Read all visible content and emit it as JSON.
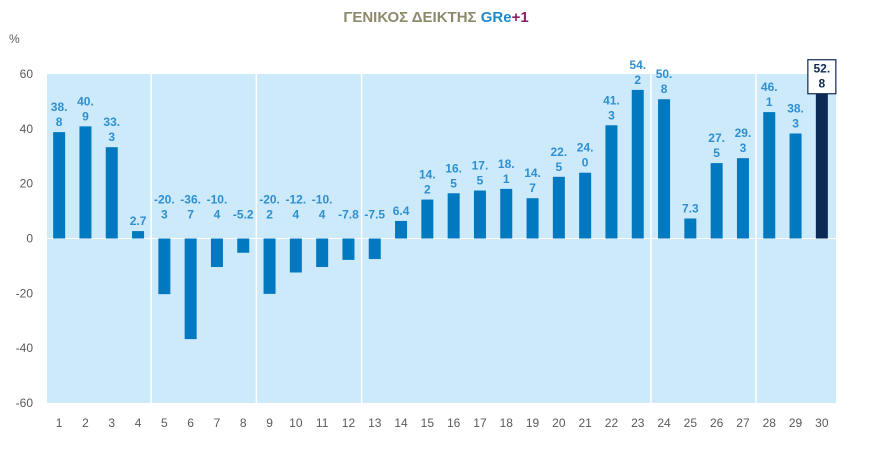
{
  "chart_data": {
    "type": "bar",
    "title_parts": [
      {
        "text": "ΓΕΝΙΚΟΣ ΔΕΙΚΤΗΣ ",
        "color": "#8c8a6a"
      },
      {
        "text": "GR",
        "color": "#1f8bc9"
      },
      {
        "text": "e",
        "color": "#1f8bc9"
      },
      {
        "text": "+1",
        "color": "#8a1f6b"
      }
    ],
    "ylabel": "%",
    "ylim": [
      -60,
      60
    ],
    "yticks": [
      60,
      40,
      20,
      0,
      -20,
      -40,
      -60
    ],
    "categories": [
      "1",
      "2",
      "3",
      "4",
      "5",
      "6",
      "7",
      "8",
      "9",
      "10",
      "11",
      "12",
      "13",
      "14",
      "15",
      "16",
      "17",
      "18",
      "19",
      "20",
      "21",
      "22",
      "23",
      "24",
      "25",
      "26",
      "27",
      "28",
      "29",
      "30"
    ],
    "values": [
      38.8,
      40.9,
      33.3,
      2.7,
      -20.3,
      -36.7,
      -10.4,
      -5.2,
      -20.2,
      -12.4,
      -10.4,
      -7.8,
      -7.5,
      6.4,
      14.2,
      16.5,
      17.5,
      18.1,
      14.7,
      22.5,
      24.0,
      41.3,
      54.2,
      50.8,
      7.3,
      27.5,
      29.3,
      46.1,
      38.3,
      52.8
    ],
    "data_labels": [
      [
        "38.",
        "8"
      ],
      [
        "40.",
        "9"
      ],
      [
        "33.",
        "3"
      ],
      [
        "2.7"
      ],
      [
        "-20.",
        "3"
      ],
      [
        "-36.",
        "7"
      ],
      [
        "-10.",
        "4"
      ],
      [
        "-5.2"
      ],
      [
        "-20.",
        "2"
      ],
      [
        "-12.",
        "4"
      ],
      [
        "-10.",
        "4"
      ],
      [
        "-7.8"
      ],
      [
        "-7.5"
      ],
      [
        "6.4"
      ],
      [
        "14.",
        "2"
      ],
      [
        "16.",
        "5"
      ],
      [
        "17.",
        "5"
      ],
      [
        "18.",
        "1"
      ],
      [
        "14.",
        "7"
      ],
      [
        "22.",
        "5"
      ],
      [
        "24.",
        "0"
      ],
      [
        "41.",
        "3"
      ],
      [
        "54.",
        "2"
      ],
      [
        "50.",
        "8"
      ],
      [
        "7.3"
      ],
      [
        "27.",
        "5"
      ],
      [
        "29.",
        "3"
      ],
      [
        "46.",
        "1"
      ],
      [
        "38.",
        "3"
      ],
      [
        "52.",
        "8"
      ]
    ],
    "highlight_index": 29,
    "colors": {
      "bar": "#0079c1",
      "bar_highlight": "#0c2a55",
      "plot_bg": "#cdeafb",
      "label": "#2e8fd0"
    },
    "grid": false
  }
}
